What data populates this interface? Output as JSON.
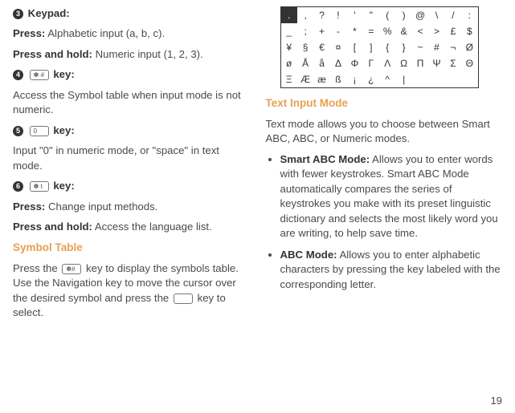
{
  "left": {
    "item3": {
      "num": "3",
      "title": " Keypad:"
    },
    "line1a": "Press:",
    "line1b": " Alphabetic input (a, b, c).",
    "line2a": "Press and hold:",
    "line2b": " Numeric input (1, 2, 3).",
    "item4": {
      "num": "4",
      "title": " key:",
      "icon": "✽ #"
    },
    "line3": "Access the Symbol table when input mode is not numeric.",
    "item5": {
      "num": "5",
      "title": " key:",
      "icon": "0"
    },
    "line4": "Input \"0\" in numeric mode, or \"space\" in text mode.",
    "item6": {
      "num": "6",
      "title": " key:",
      "icon": "✽ t"
    },
    "line5a": "Press:",
    "line5b": " Change input methods.",
    "line6a": "Press and hold:",
    "line6b": " Access the language list.",
    "heading1": "Symbol Table",
    "para1a": "Press the ",
    "para1b": " key to display the symbols table. Use the Navigation key to move the cursor over the desired symbol and press the ",
    "para1c": " key to select.",
    "icon_a": "✽#",
    "icon_b": " "
  },
  "symtable": {
    "rows": [
      [
        ".",
        ",",
        "?",
        "!",
        "'",
        "\"",
        "(",
        ")",
        "@",
        "\\",
        "/",
        ":"
      ],
      [
        "_",
        ";",
        "+",
        "-",
        "*",
        "=",
        "%",
        "&",
        "<",
        ">",
        "£",
        "$"
      ],
      [
        "¥",
        "§",
        "€",
        "¤",
        "[",
        "]",
        "{",
        "}",
        "~",
        "#",
        "¬",
        "Ø"
      ],
      [
        "ø",
        "Å",
        "å",
        "Δ",
        "Φ",
        "Γ",
        "Λ",
        "Ω",
        "Π",
        "Ψ",
        "Σ",
        "Θ"
      ],
      [
        "Ξ",
        "Æ",
        "æ",
        "ß",
        "¡",
        "¿",
        "^",
        "|",
        "",
        "",
        "",
        ""
      ]
    ]
  },
  "right": {
    "heading": "Text Input Mode",
    "intro": "Text mode allows you to choose between Smart ABC, ABC, or Numeric modes.",
    "b1a": "Smart ABC Mode:",
    "b1b": " Allows you to enter words with fewer keystrokes. Smart ABC Mode automatically compares the series of keystrokes you make with its preset linguistic dictionary and selects the most likely word you are writing, to help save time.",
    "b2a": "ABC Mode:",
    "b2b": " Allows you to enter alphabetic characters by pressing the key labeled with the corresponding letter."
  },
  "pagenum": "19"
}
